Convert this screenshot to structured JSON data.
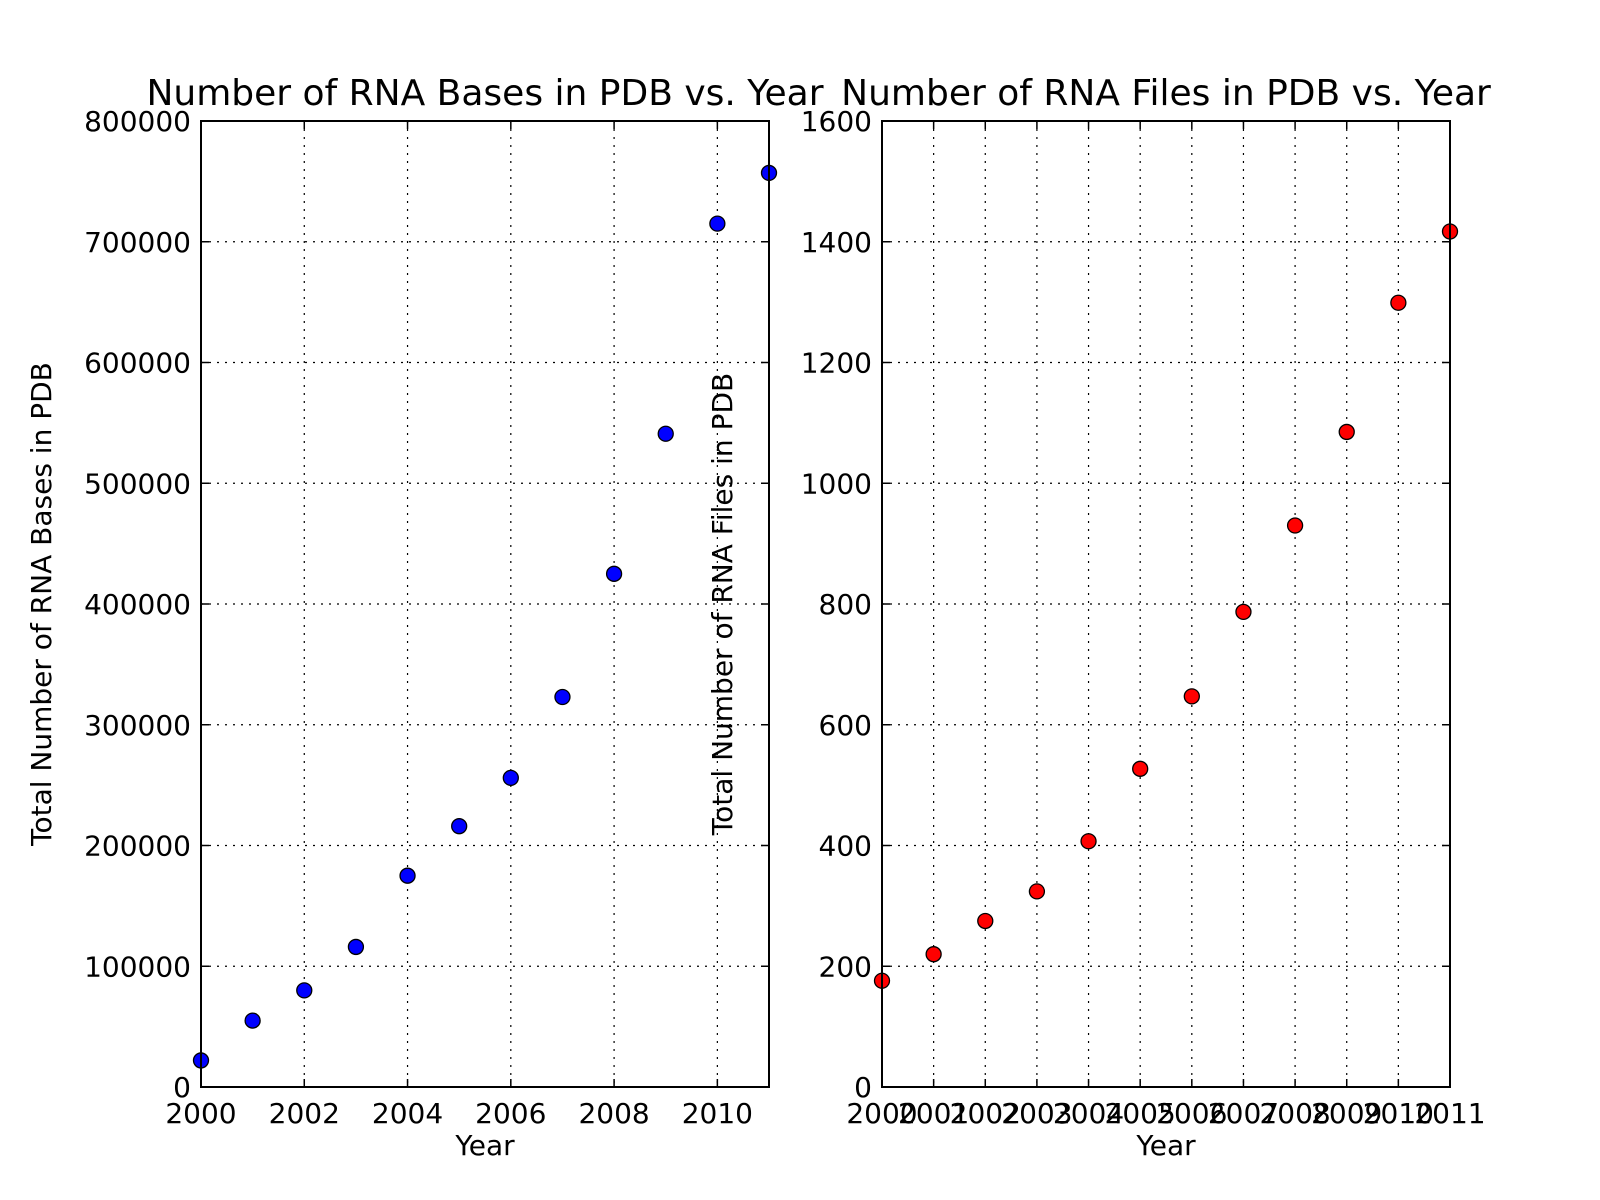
{
  "chart_data": [
    {
      "type": "scatter",
      "title": "Number of RNA Bases in PDB vs. Year",
      "xlabel": "Year",
      "ylabel": "Total Number of RNA Bases in PDB",
      "xlim": [
        2000,
        2011
      ],
      "ylim": [
        0,
        800000
      ],
      "xticks": [
        2000,
        2002,
        2004,
        2006,
        2008,
        2010
      ],
      "xtick_labels": [
        "2000",
        "2002",
        "2004",
        "2006",
        "2008",
        "2010"
      ],
      "yticks": [
        0,
        100000,
        200000,
        300000,
        400000,
        500000,
        600000,
        700000,
        800000
      ],
      "ytick_labels": [
        "0",
        "100000",
        "200000",
        "300000",
        "400000",
        "500000",
        "600000",
        "700000",
        "800000"
      ],
      "grid": true,
      "marker_color": "#0000ff",
      "x": [
        2000,
        2001,
        2002,
        2003,
        2004,
        2005,
        2006,
        2007,
        2008,
        2009,
        2010,
        2011
      ],
      "y": [
        22000,
        55000,
        80000,
        116000,
        175000,
        216000,
        256000,
        323000,
        425000,
        541000,
        715000,
        757000
      ]
    },
    {
      "type": "scatter",
      "title": "Number of RNA Files in PDB vs. Year",
      "xlabel": "Year",
      "ylabel": "Total Number of RNA Files in PDB",
      "xlim": [
        2000,
        2011
      ],
      "ylim": [
        0,
        1600
      ],
      "xticks": [
        2000,
        2001,
        2002,
        2003,
        2004,
        2005,
        2006,
        2007,
        2008,
        2009,
        2010,
        2011
      ],
      "xtick_labels": [
        "2000",
        "2001",
        "2002",
        "2003",
        "2004",
        "2005",
        "2006",
        "2007",
        "2008",
        "2009",
        "2010",
        "2011"
      ],
      "yticks": [
        0,
        200,
        400,
        600,
        800,
        1000,
        1200,
        1400,
        1600
      ],
      "ytick_labels": [
        "0",
        "200",
        "400",
        "600",
        "800",
        "1000",
        "1200",
        "1400",
        "1600"
      ],
      "grid": true,
      "marker_color": "#ff0000",
      "x": [
        2000,
        2001,
        2002,
        2003,
        2004,
        2005,
        2006,
        2007,
        2008,
        2009,
        2010,
        2011
      ],
      "y": [
        176,
        220,
        275,
        324,
        407,
        527,
        647,
        787,
        930,
        1085,
        1299,
        1417
      ]
    }
  ]
}
